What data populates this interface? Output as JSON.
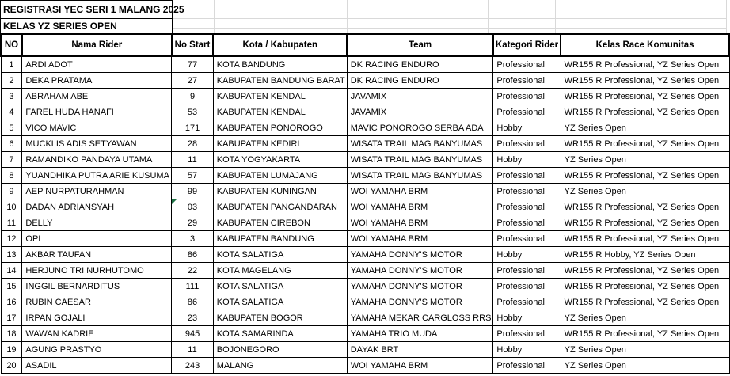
{
  "titles": {
    "main": "REGISTRASI YEC SERI 1 MALANG 2025",
    "sub": "KELAS YZ SERIES OPEN"
  },
  "colors": {
    "border": "#000000",
    "gridline": "#d9d9d9",
    "text_as_number_marker": "#1e7145",
    "background": "#ffffff"
  },
  "table": {
    "columns": [
      "NO",
      "Nama Rider",
      "No Start",
      "Kota / Kabupaten",
      "Team",
      "Kategori Rider",
      "Kelas Race Komunitas"
    ],
    "rows": [
      [
        "1",
        "ARDI ADOT",
        "77",
        "KOTA BANDUNG",
        "DK RACING ENDURO",
        "Professional",
        "WR155 R Professional, YZ Series Open"
      ],
      [
        "2",
        "DEKA PRATAMA",
        "27",
        "KABUPATEN BANDUNG BARAT",
        "DK RACING ENDURO",
        "Professional",
        "WR155 R Professional, YZ Series Open"
      ],
      [
        "3",
        "ABRAHAM ABE",
        "9",
        "KABUPATEN KENDAL",
        "JAVAMIX",
        "Professional",
        "WR155 R Professional, YZ Series Open"
      ],
      [
        "4",
        "FAREL HUDA HANAFI",
        "53",
        "KABUPATEN KENDAL",
        "JAVAMIX",
        "Professional",
        "WR155 R Professional, YZ Series Open"
      ],
      [
        "5",
        "VICO MAVIC",
        "171",
        "KABUPATEN PONOROGO",
        "MAVIC PONOROGO SERBA ADA",
        "Hobby",
        "YZ Series Open"
      ],
      [
        "6",
        "MUCKLIS ADIS SETYAWAN",
        "28",
        "KABUPATEN KEDIRI",
        "WISATA TRAIL MAG BANYUMAS",
        "Professional",
        "WR155 R Professional, YZ Series Open"
      ],
      [
        "7",
        "RAMANDIKO PANDAYA UTAMA",
        "11",
        "KOTA YOGYAKARTA",
        "WISATA TRAIL MAG BANYUMAS",
        "Hobby",
        "YZ Series Open"
      ],
      [
        "8",
        "YUANDHIKA PUTRA ARIE KUSUMA",
        "57",
        "KABUPATEN LUMAJANG",
        "WISATA TRAIL MAG BANYUMAS",
        "Professional",
        "WR155 R Professional, YZ Series Open"
      ],
      [
        "9",
        "AEP NURPATURAHMAN",
        "99",
        "KABUPATEN KUNINGAN",
        "WOI YAMAHA BRM",
        "Professional",
        "YZ Series Open"
      ],
      [
        "10",
        "DADAN ADRIANSYAH",
        "03",
        "KABUPATEN PANGANDARAN",
        "WOI YAMAHA BRM",
        "Professional",
        "WR155 R Professional, YZ Series Open"
      ],
      [
        "11",
        "DELLY",
        "29",
        "KABUPATEN CIREBON",
        "WOI YAMAHA BRM",
        "Professional",
        "WR155 R Professional, YZ Series Open"
      ],
      [
        "12",
        "OPI",
        "3",
        "KABUPATEN BANDUNG",
        "WOI YAMAHA BRM",
        "Professional",
        "WR155 R Professional, YZ Series Open"
      ],
      [
        "13",
        "AKBAR TAUFAN",
        "86",
        "KOTA SALATIGA",
        "YAMAHA DONNY'S MOTOR",
        "Hobby",
        "WR155 R Hobby, YZ Series Open"
      ],
      [
        "14",
        "HERJUNO TRI NURHUTOMO",
        "22",
        "KOTA MAGELANG",
        "YAMAHA DONNY'S MOTOR",
        "Professional",
        "WR155 R Professional, YZ Series Open"
      ],
      [
        "15",
        "INGGIL BERNARDITUS",
        "111",
        "KOTA SALATIGA",
        "YAMAHA DONNY'S MOTOR",
        "Professional",
        "WR155 R Professional, YZ Series Open"
      ],
      [
        "16",
        "RUBIN CAESAR",
        "86",
        "KOTA SALATIGA",
        "YAMAHA DONNY'S MOTOR",
        "Professional",
        "WR155 R Professional, YZ Series Open"
      ],
      [
        "17",
        "IRPAN GOJALI",
        "23",
        "KABUPATEN BOGOR",
        "YAMAHA MEKAR CARGLOSS RRS",
        "Hobby",
        "YZ Series Open"
      ],
      [
        "18",
        "WAWAN KADRIE",
        "945",
        "KOTA SAMARINDA",
        "YAMAHA TRIO MUDA",
        "Professional",
        "WR155 R Professional, YZ Series Open"
      ],
      [
        "19",
        "AGUNG PRASTYO",
        "11",
        "BOJONEGORO",
        "DAYAK BRT",
        "Hobby",
        "YZ Series Open"
      ],
      [
        "20",
        "ASADIL",
        "243",
        "MALANG",
        "WOI YAMAHA BRM",
        "Professional",
        "YZ Series Open"
      ]
    ],
    "indicator": {
      "row_index": 9,
      "column_index": 2,
      "type": "green-triangle",
      "color": "#1e7145"
    }
  }
}
